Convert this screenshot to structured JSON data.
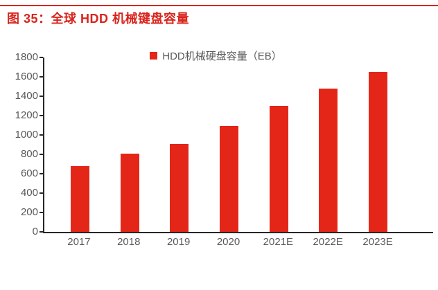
{
  "page": {
    "title": "图 35：全球 HDD 机械键盘容量"
  },
  "colors": {
    "accent_red": "#d9241c",
    "bar_red": "#e42618",
    "axis_black": "#262626",
    "label_gray": "#595959"
  },
  "chart_data": {
    "type": "bar",
    "title": "图 35：全球 HDD 机械键盘容量",
    "legend": [
      "HDD机械硬盘容量（EB）"
    ],
    "categories": [
      "2017",
      "2018",
      "2019",
      "2020",
      "2021E",
      "2022E",
      "2023E"
    ],
    "values": [
      680,
      810,
      910,
      1090,
      1300,
      1480,
      1650
    ],
    "xlabel": "",
    "ylabel": "",
    "ylim": [
      0,
      1800
    ],
    "ytick_step": 200,
    "grid": false,
    "legend_position": "top-center"
  }
}
